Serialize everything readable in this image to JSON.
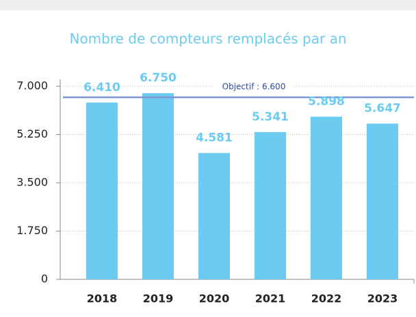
{
  "chart_data": {
    "type": "bar",
    "title": "Nombre de compteurs remplacés par an",
    "categories": [
      "2018",
      "2019",
      "2020",
      "2021",
      "2022",
      "2023"
    ],
    "values": [
      6410,
      6750,
      4581,
      5341,
      5898,
      5647
    ],
    "value_labels": [
      "6.410",
      "6.750",
      "4.581",
      "5.341",
      "5.898",
      "5.647"
    ],
    "color": "#6ccbf0",
    "ylim": [
      0,
      7000
    ],
    "yticks": [
      0,
      {
        "value": 1750,
        "label": "1.750"
      },
      {
        "value": 3500,
        "label": "3.500"
      },
      {
        "value": 5250,
        "label": "5.250"
      },
      {
        "value": 7000,
        "label": "7.000"
      }
    ],
    "grid": true,
    "target": {
      "value": 6600,
      "label": "Objectif : 6.600",
      "color": "#7b96d4"
    }
  }
}
